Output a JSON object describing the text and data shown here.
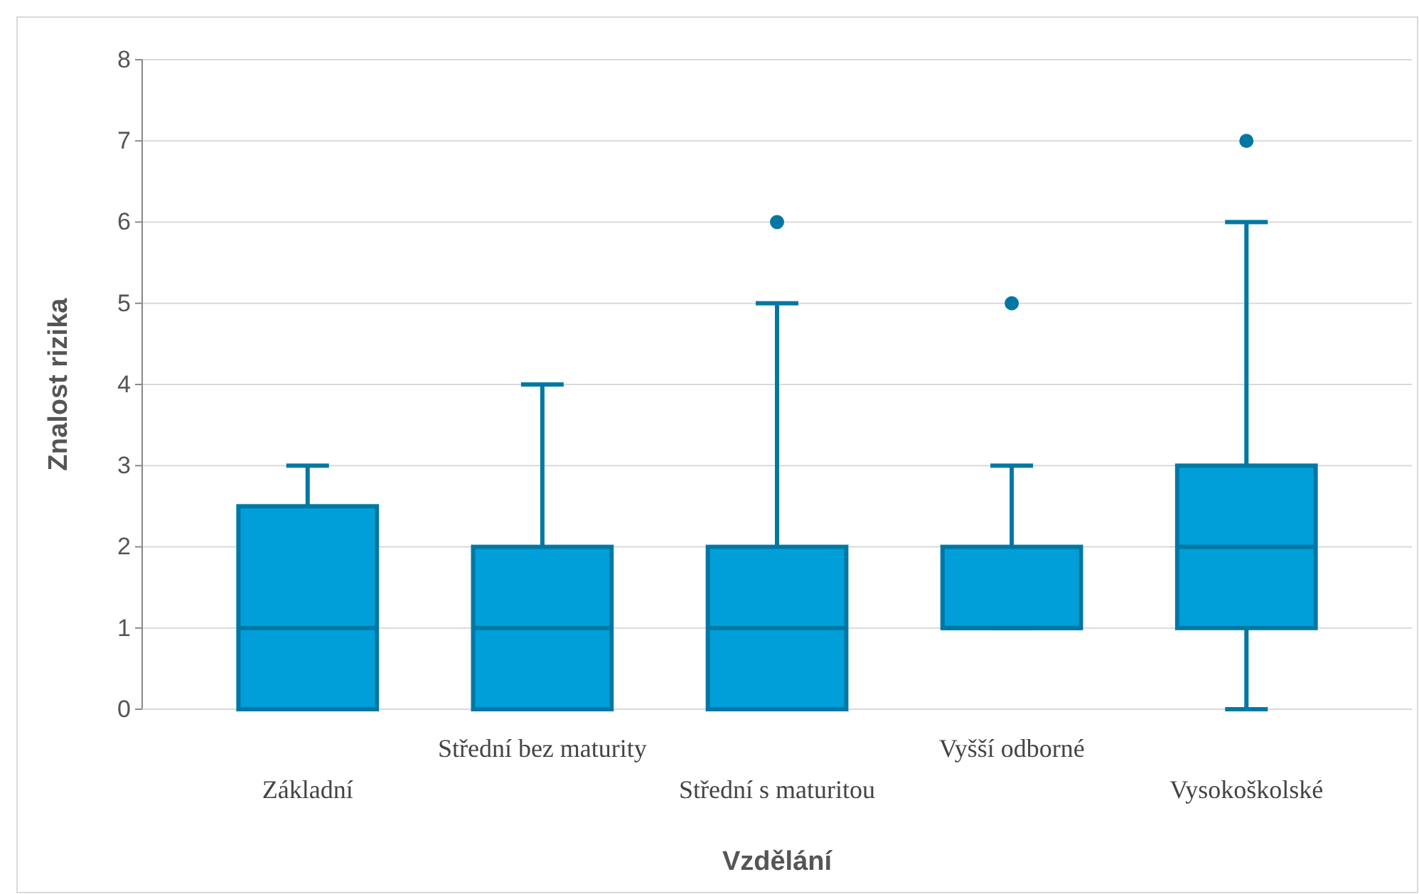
{
  "chart_data": {
    "type": "box",
    "xlabel": "Vzdělání",
    "ylabel": "Znalost rizika",
    "categories": [
      "Základní",
      "Střední bez maturity",
      "Střední s maturitou",
      "Vyšší odborné",
      "Vysokoškolské"
    ],
    "boxes": [
      {
        "low": 0,
        "q1": 0,
        "median": 1,
        "q3": 2.5,
        "high": 3
      },
      {
        "low": 0,
        "q1": 0,
        "median": 1,
        "q3": 2,
        "high": 4
      },
      {
        "low": 0,
        "q1": 0,
        "median": 1,
        "q3": 2,
        "high": 5,
        "outliers": [
          6
        ]
      },
      {
        "low": 1,
        "q1": 1,
        "median": 1,
        "q3": 2,
        "high": 3,
        "outliers": [
          5
        ]
      },
      {
        "low": 0,
        "q1": 1,
        "median": 2,
        "q3": 3,
        "high": 6,
        "outliers": [
          7
        ]
      }
    ],
    "color": "#009fd9",
    "ylim": [
      0,
      8
    ],
    "yticks": [
      0,
      1,
      2,
      3,
      4,
      5,
      6,
      7,
      8
    ],
    "grid": "y"
  }
}
